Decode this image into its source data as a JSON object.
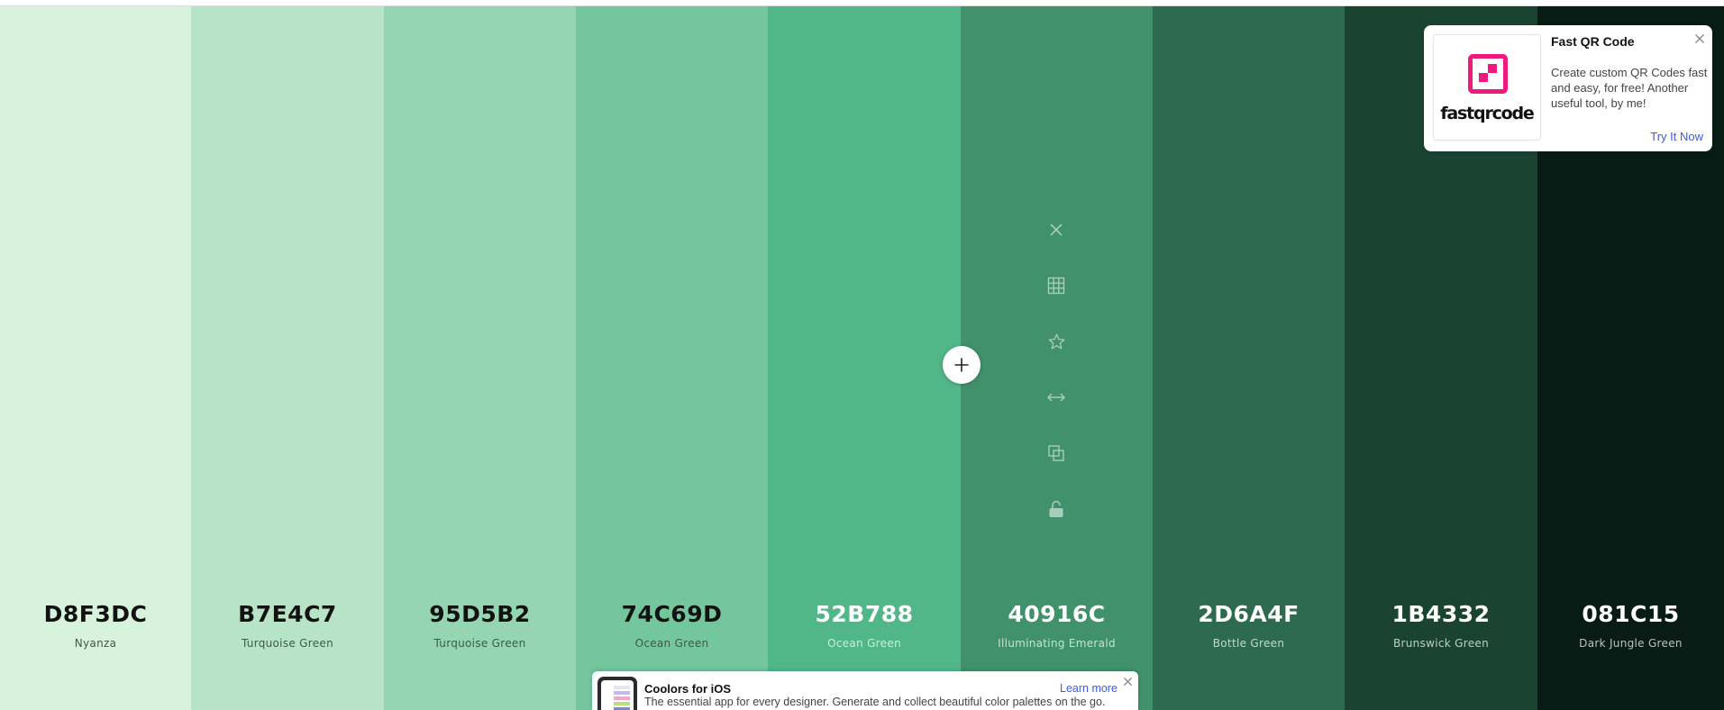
{
  "swatches": [
    {
      "hex": "D8F3DC",
      "name": "Nyanza",
      "color": "#D8F3DC",
      "text": "dark"
    },
    {
      "hex": "B7E4C7",
      "name": "Turquoise Green",
      "color": "#B7E4C7",
      "text": "dark"
    },
    {
      "hex": "95D5B2",
      "name": "Turquoise Green",
      "color": "#95D5B2",
      "text": "dark"
    },
    {
      "hex": "74C69D",
      "name": "Ocean Green",
      "color": "#74C69D",
      "text": "dark"
    },
    {
      "hex": "52B788",
      "name": "Ocean Green",
      "color": "#52B788",
      "text": "light"
    },
    {
      "hex": "40916C",
      "name": "Illuminating Emerald",
      "color": "#40916C",
      "text": "light"
    },
    {
      "hex": "2D6A4F",
      "name": "Bottle Green",
      "color": "#2D6A4F",
      "text": "light"
    },
    {
      "hex": "1B4332",
      "name": "Brunswick Green",
      "color": "#1B4332",
      "text": "light"
    },
    {
      "hex": "081C15",
      "name": "Dark Jungle Green",
      "color": "#081C15",
      "text": "light"
    }
  ],
  "swatch_tools": [
    "close-icon",
    "grid-icon",
    "star-icon",
    "drag-arrows-icon",
    "copy-icon",
    "unlock-icon"
  ],
  "add_button": {
    "icon": "plus-icon"
  },
  "ad": {
    "title": "Fast QR Code",
    "text": "Create custom QR Codes fast and easy, for free! Another useful tool, by me!",
    "link": "Try It Now",
    "logo_text": "fastqrcode",
    "brand_color": "#F0197D",
    "close_icon": "close-icon"
  },
  "ios_banner": {
    "title": "Coolors for iOS",
    "text": "The essential app for every designer. Generate and collect beautiful color palettes on the go.",
    "link": "Learn more",
    "close_icon": "close-icon"
  }
}
